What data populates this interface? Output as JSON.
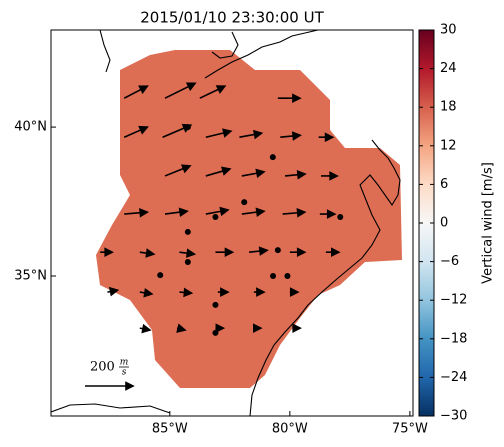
{
  "title": "2015/01/10 23:30:00 UT",
  "map": {
    "lonlim": [
      -89.95,
      -74.87
    ],
    "latlim": [
      30.3,
      43.26
    ],
    "lonticks": [
      {
        "value": -85,
        "label": "85°W"
      },
      {
        "value": -80,
        "label": "80°W"
      },
      {
        "value": -75,
        "label": "75°W"
      }
    ],
    "latticks": [
      {
        "value": 35,
        "label": "35°N"
      },
      {
        "value": 40,
        "label": "40°N"
      }
    ],
    "region_color": "#dd6d53",
    "arrow_color": "#000000",
    "reference_arrow": {
      "value": 200,
      "unit_numerator": "m",
      "unit_denominator": "s"
    },
    "arrows": [
      {
        "lon": -86.9,
        "lat": 40.97,
        "u": 96,
        "v": 50
      },
      {
        "lon": -85.2,
        "lat": 40.97,
        "u": 125,
        "v": 62
      },
      {
        "lon": -83.75,
        "lat": 40.97,
        "u": 104,
        "v": 50
      },
      {
        "lon": -80.5,
        "lat": 40.97,
        "u": 92,
        "v": 0
      },
      {
        "lon": -86.9,
        "lat": 39.66,
        "u": 96,
        "v": 42
      },
      {
        "lon": -85.3,
        "lat": 39.66,
        "u": 117,
        "v": 50
      },
      {
        "lon": -83.5,
        "lat": 39.66,
        "u": 104,
        "v": 25
      },
      {
        "lon": -82.1,
        "lat": 39.66,
        "u": 92,
        "v": 17
      },
      {
        "lon": -80.4,
        "lat": 39.66,
        "u": 83,
        "v": 8
      },
      {
        "lon": -78.8,
        "lat": 39.66,
        "u": 58,
        "v": 0
      },
      {
        "lon": -85.2,
        "lat": 38.36,
        "u": 104,
        "v": 42
      },
      {
        "lon": -83.5,
        "lat": 38.36,
        "u": 100,
        "v": 29
      },
      {
        "lon": -82.0,
        "lat": 38.36,
        "u": 92,
        "v": 17
      },
      {
        "lon": -80.2,
        "lat": 38.36,
        "u": 83,
        "v": 8
      },
      {
        "lon": -78.7,
        "lat": 38.36,
        "u": 67,
        "v": 0
      },
      {
        "lon": -86.9,
        "lat": 37.08,
        "u": 96,
        "v": 8
      },
      {
        "lon": -85.2,
        "lat": 37.08,
        "u": 92,
        "v": 12
      },
      {
        "lon": -83.5,
        "lat": 37.08,
        "u": 92,
        "v": 17
      },
      {
        "lon": -82.0,
        "lat": 37.08,
        "u": 92,
        "v": 12
      },
      {
        "lon": -80.3,
        "lat": 37.08,
        "u": 92,
        "v": 8
      },
      {
        "lon": -78.75,
        "lat": 37.08,
        "u": 62,
        "v": 0
      },
      {
        "lon": -87.9,
        "lat": 35.8,
        "u": 50,
        "v": 0
      },
      {
        "lon": -86.25,
        "lat": 35.8,
        "u": 58,
        "v": -8
      },
      {
        "lon": -84.6,
        "lat": 35.8,
        "u": 62,
        "v": -8
      },
      {
        "lon": -83.1,
        "lat": 35.8,
        "u": 71,
        "v": 0
      },
      {
        "lon": -81.7,
        "lat": 35.8,
        "u": 75,
        "v": 8
      },
      {
        "lon": -80.0,
        "lat": 35.8,
        "u": 62,
        "v": 0
      },
      {
        "lon": -78.5,
        "lat": 35.8,
        "u": 54,
        "v": 0
      },
      {
        "lon": -87.6,
        "lat": 34.46,
        "u": 42,
        "v": 8
      },
      {
        "lon": -86.25,
        "lat": 34.46,
        "u": 50,
        "v": -8
      },
      {
        "lon": -84.6,
        "lat": 34.46,
        "u": 50,
        "v": -4
      },
      {
        "lon": -83.0,
        "lat": 34.46,
        "u": 42,
        "v": 0
      },
      {
        "lon": -81.5,
        "lat": 34.46,
        "u": 42,
        "v": 0
      },
      {
        "lon": -80.0,
        "lat": 34.46,
        "u": 33,
        "v": 0
      },
      {
        "lon": -86.25,
        "lat": 33.25,
        "u": 42,
        "v": -8
      },
      {
        "lon": -84.7,
        "lat": 33.25,
        "u": 33,
        "v": -8
      },
      {
        "lon": -83.1,
        "lat": 33.25,
        "u": 33,
        "v": 0
      },
      {
        "lon": -81.5,
        "lat": 33.25,
        "u": 29,
        "v": 0
      },
      {
        "lon": -79.9,
        "lat": 33.25,
        "u": 33,
        "v": 0
      }
    ],
    "stations": [
      {
        "lon": -84.25,
        "lat": 40.0
      },
      {
        "lon": -80.71,
        "lat": 38.99
      },
      {
        "lon": -81.9,
        "lat": 37.48
      },
      {
        "lon": -83.1,
        "lat": 36.98
      },
      {
        "lon": -84.25,
        "lat": 36.48
      },
      {
        "lon": -77.9,
        "lat": 36.98
      },
      {
        "lon": -84.25,
        "lat": 35.47
      },
      {
        "lon": -85.4,
        "lat": 35.03
      },
      {
        "lon": -80.5,
        "lat": 35.87
      },
      {
        "lon": -80.7,
        "lat": 35.0
      },
      {
        "lon": -80.1,
        "lat": 35.0
      },
      {
        "lon": -83.1,
        "lat": 34.03
      },
      {
        "lon": -83.1,
        "lat": 33.09
      }
    ]
  },
  "colorbar": {
    "label": "Vertical wind [m/s]",
    "lim": [
      -30,
      30
    ],
    "ticks": [
      30,
      24,
      18,
      12,
      6,
      0,
      {
        "value": -6,
        "label": "−6"
      },
      {
        "value": -12,
        "label": "−12"
      },
      {
        "value": -18,
        "label": "−18"
      },
      {
        "value": -24,
        "label": "−24"
      },
      {
        "value": -30,
        "label": "−30"
      }
    ]
  }
}
